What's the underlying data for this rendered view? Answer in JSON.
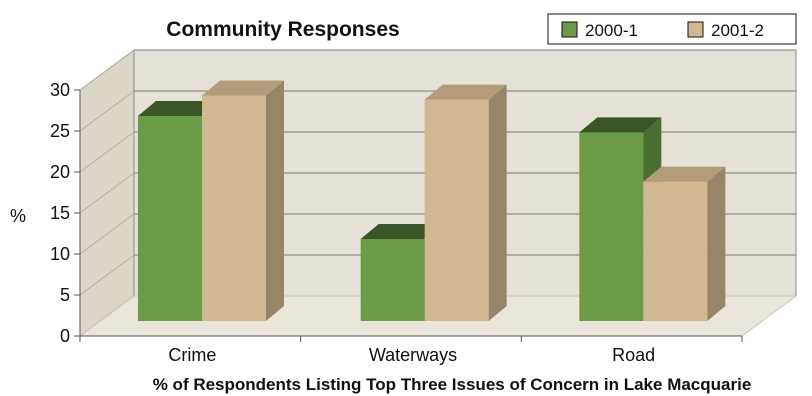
{
  "chart_data": {
    "type": "bar",
    "title": "Community Responses",
    "xlabel": "% of Respondents Listing Top Three Issues of Concern in Lake Macquarie",
    "ylabel": "%",
    "categories": [
      "Crime",
      "Waterways",
      "Road"
    ],
    "series": [
      {
        "name": "2000-1",
        "values": [
          25,
          10,
          23
        ],
        "color": "#6a9c45"
      },
      {
        "name": "2001-2",
        "values": [
          27.5,
          27,
          17
        ],
        "color": "#d0b990"
      }
    ],
    "ylim": [
      0,
      30
    ],
    "yticks": [
      0,
      5,
      10,
      15,
      20,
      25,
      30
    ],
    "grid": true,
    "legend": "top-right"
  }
}
